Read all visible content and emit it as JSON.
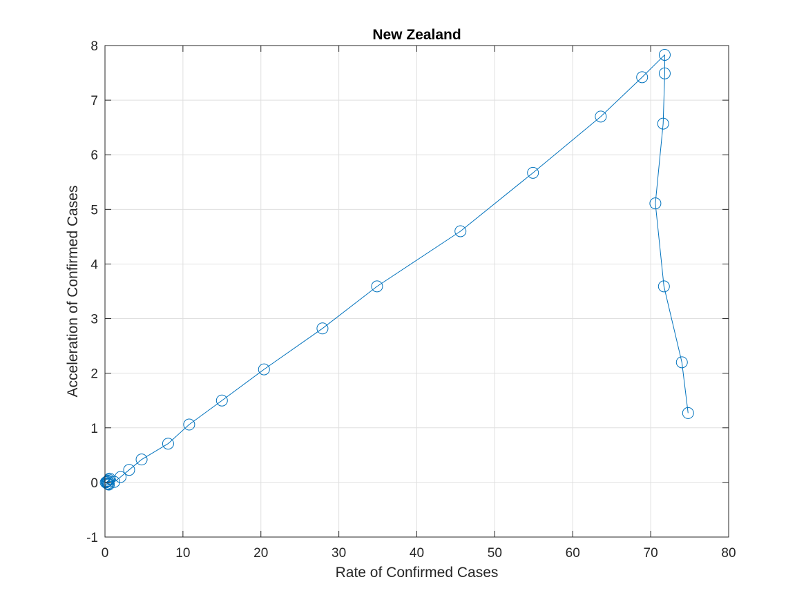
{
  "chart_data": {
    "type": "line",
    "title": "New Zealand",
    "xlabel": "Rate of Confirmed Cases",
    "ylabel": "Acceleration of Confirmed Cases",
    "xlim": [
      0,
      80
    ],
    "ylim": [
      -1,
      8
    ],
    "xticks": [
      0,
      10,
      20,
      30,
      40,
      50,
      60,
      70,
      80
    ],
    "yticks": [
      -1,
      0,
      1,
      2,
      3,
      4,
      5,
      6,
      7,
      8
    ],
    "grid": true,
    "line_color": "#0072BD",
    "marker": "circle",
    "series": [
      {
        "x": [
          0.1,
          0.2,
          0.3,
          0.4,
          0.5,
          0.6,
          0.5,
          0.4,
          0.3,
          1.2,
          2.0,
          3.1,
          4.7,
          8.1,
          10.8,
          15.0,
          20.4,
          27.9,
          34.9,
          45.6,
          54.9,
          63.6,
          68.9,
          71.8,
          71.8,
          71.6,
          70.6,
          71.7,
          74.0,
          74.8
        ],
        "y": [
          0.0,
          0.01,
          -0.02,
          0.03,
          0.05,
          0.07,
          -0.04,
          -0.03,
          0.02,
          0.01,
          0.1,
          0.23,
          0.42,
          0.71,
          1.06,
          1.5,
          2.07,
          2.82,
          3.59,
          4.6,
          5.67,
          6.7,
          7.42,
          7.83,
          7.49,
          6.57,
          5.11,
          3.59,
          2.2,
          1.27
        ]
      }
    ]
  }
}
